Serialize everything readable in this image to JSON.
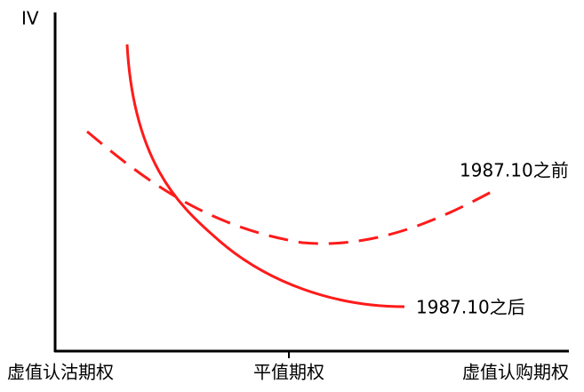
{
  "y_axis_label": "IV",
  "x_axis_labels": [
    "虚值认沽期权",
    "平值期权",
    "虚值认购期权"
  ],
  "curves": [
    {
      "label": "1987.10之前"
    },
    {
      "label": "1987.10之后"
    }
  ]
}
